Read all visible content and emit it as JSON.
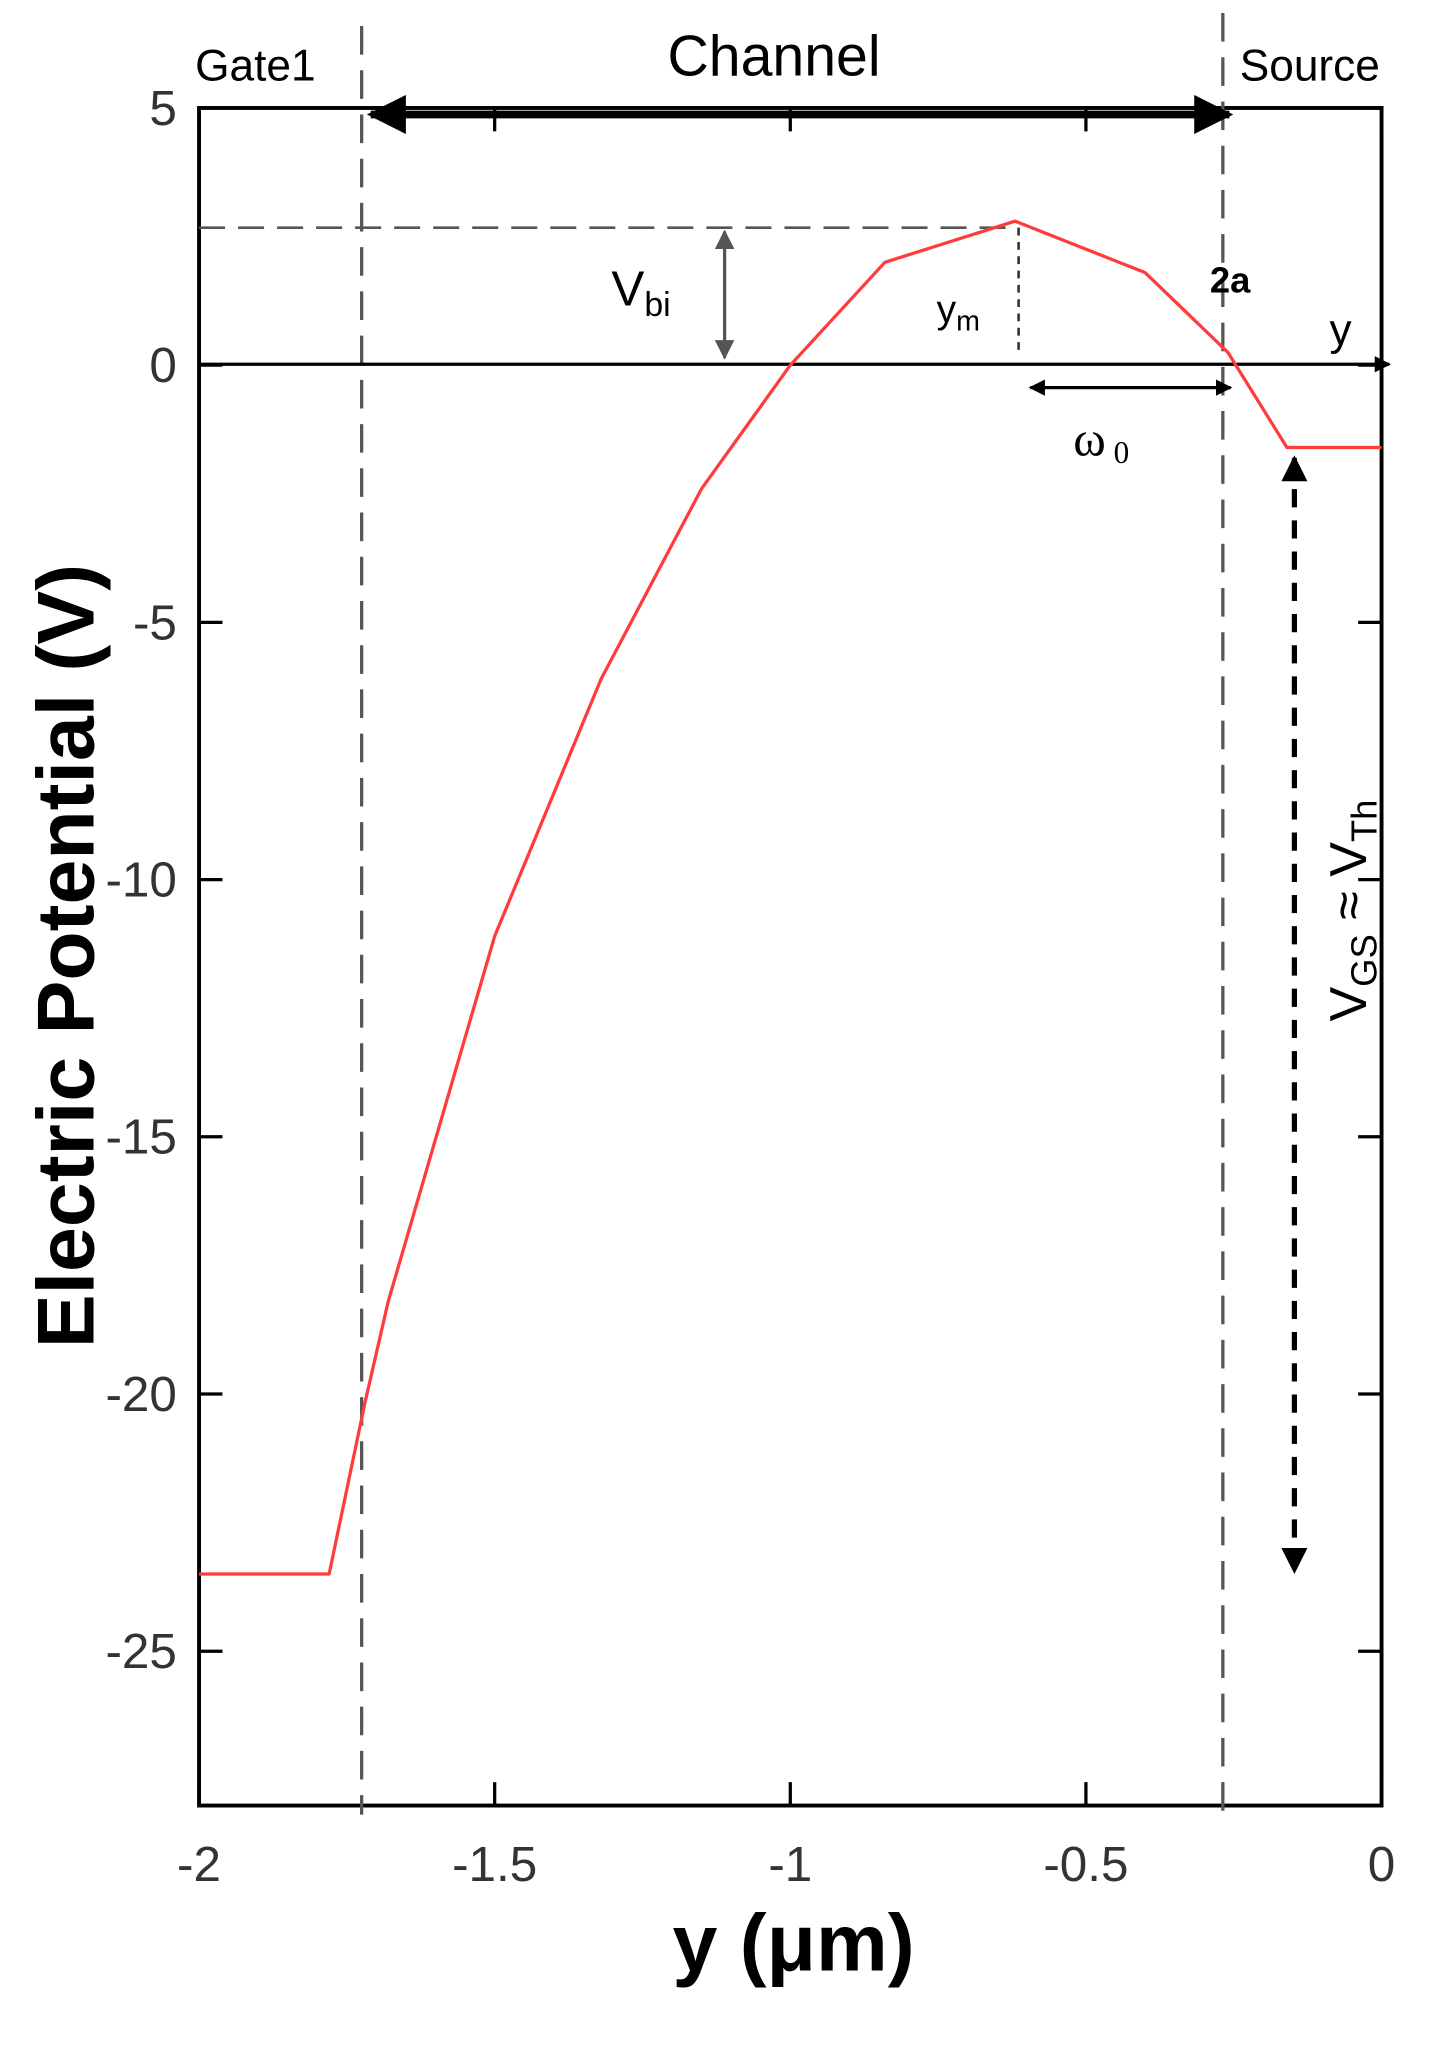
{
  "chart_data": {
    "type": "line",
    "xlabel": "y (μm)",
    "ylabel": "Electric Potential (V)",
    "xlim": [
      -2,
      0
    ],
    "ylim": [
      -28,
      5
    ],
    "xticks": [
      -2,
      -1.5,
      -1,
      -0.5,
      0
    ],
    "yticks": [
      5,
      0,
      -5,
      -10,
      -15,
      -20,
      -25
    ],
    "series": [
      {
        "name": "potential",
        "color": "#ff3b3b",
        "x": [
          -2,
          -1.78,
          -1.72,
          -1.68,
          -1.5,
          -1.32,
          -1.15,
          -1.0,
          -0.84,
          -0.62,
          -0.4,
          -0.26,
          -0.16,
          0
        ],
        "values": [
          -23.5,
          -23.5,
          -20.2,
          -18.2,
          -11.1,
          -6.1,
          -2.4,
          0,
          2.0,
          2.8,
          1.8,
          0.25,
          -1.6,
          -1.6
        ]
      }
    ],
    "annotations": {
      "gate": "Gate1",
      "channel": "Channel",
      "source": "Source",
      "vbi": {
        "main": "V",
        "sub": "bi"
      },
      "ym": {
        "main": "y",
        "sub": "m"
      },
      "two_a": "2a",
      "y_axis": "y",
      "omega": {
        "main": "ω",
        "sub": "0"
      },
      "vgs": {
        "v1": "V",
        "s1": "GS",
        "mid": " ≈ ",
        "v2": "V",
        "s2": "Th"
      }
    }
  }
}
